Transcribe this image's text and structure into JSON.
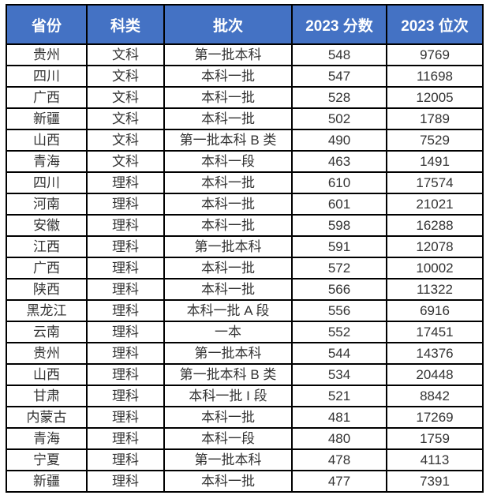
{
  "chart_data": {
    "type": "table",
    "title": "",
    "columns": [
      "省份",
      "科类",
      "批次",
      "2023 分数",
      "2023 位次"
    ],
    "column_keys": [
      "province",
      "subject",
      "batch",
      "score-2023",
      "rank-2023"
    ],
    "rows": [
      [
        "贵州",
        "文科",
        "第一批本科",
        "548",
        "9769"
      ],
      [
        "四川",
        "文科",
        "本科一批",
        "547",
        "11698"
      ],
      [
        "广西",
        "文科",
        "本科一批",
        "528",
        "12005"
      ],
      [
        "新疆",
        "文科",
        "本科一批",
        "502",
        "1789"
      ],
      [
        "山西",
        "文科",
        "第一批本科 B 类",
        "490",
        "7529"
      ],
      [
        "青海",
        "文科",
        "本科一段",
        "463",
        "1491"
      ],
      [
        "四川",
        "理科",
        "本科一批",
        "610",
        "17574"
      ],
      [
        "河南",
        "理科",
        "本科一批",
        "601",
        "21021"
      ],
      [
        "安徽",
        "理科",
        "本科一批",
        "598",
        "16288"
      ],
      [
        "江西",
        "理科",
        "第一批本科",
        "591",
        "12078"
      ],
      [
        "广西",
        "理科",
        "本科一批",
        "572",
        "10002"
      ],
      [
        "陕西",
        "理科",
        "本科一批",
        "566",
        "11322"
      ],
      [
        "黑龙江",
        "理科",
        "本科一批 A 段",
        "556",
        "6916"
      ],
      [
        "云南",
        "理科",
        "一本",
        "552",
        "17451"
      ],
      [
        "贵州",
        "理科",
        "第一批本科",
        "544",
        "14376"
      ],
      [
        "山西",
        "理科",
        "第一批本科 B 类",
        "534",
        "20448"
      ],
      [
        "甘肃",
        "理科",
        "本科一批 I 段",
        "521",
        "8842"
      ],
      [
        "内蒙古",
        "理科",
        "本科一批",
        "481",
        "17269"
      ],
      [
        "青海",
        "理科",
        "本科一段",
        "480",
        "1759"
      ],
      [
        "宁夏",
        "理科",
        "第一批本科",
        "478",
        "4113"
      ],
      [
        "新疆",
        "理科",
        "本科一批",
        "477",
        "7391"
      ]
    ]
  },
  "colors": {
    "header_background": "#4472C4",
    "header_text": "#FFFFFF",
    "body_text": "#333333",
    "border": "#000000",
    "page_background": "#FFFFFF"
  }
}
